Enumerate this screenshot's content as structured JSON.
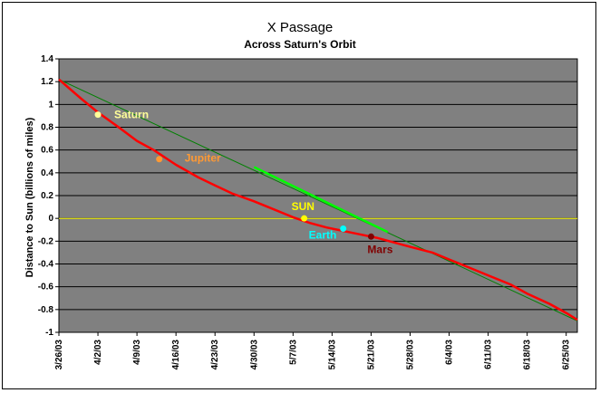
{
  "chart_data": {
    "type": "line",
    "title": "X Passage",
    "subtitle": "Across Saturn's Orbit",
    "ylabel": "Distance to Sun (billions of miles)",
    "ylim": [
      -1,
      1.4
    ],
    "yticks": [
      "1.4",
      "1.2",
      "1",
      "0.8",
      "0.6",
      "0.4",
      "0.2",
      "0",
      "-0.2",
      "-0.4",
      "-0.6",
      "-0.8",
      "-1"
    ],
    "xlim": [
      "3/26/03",
      "6/27/03"
    ],
    "xticks": [
      "3/26/03",
      "4/2/03",
      "4/9/03",
      "4/16/03",
      "4/23/03",
      "4/30/03",
      "5/7/03",
      "5/14/03",
      "5/21/03",
      "5/28/03",
      "6/4/03",
      "6/11/03",
      "6/18/03",
      "6/25/03"
    ],
    "grid": true,
    "plot_background": "#808080",
    "series": [
      {
        "color": "#ff0000",
        "points": [
          [
            "3/26/03",
            1.22
          ],
          [
            "3/30/03",
            1.05
          ],
          [
            "4/2/03",
            0.93
          ],
          [
            "4/6/03",
            0.79
          ],
          [
            "4/9/03",
            0.68
          ],
          [
            "4/12/03",
            0.6
          ],
          [
            "4/16/03",
            0.47
          ],
          [
            "4/20/03",
            0.36
          ],
          [
            "4/23/03",
            0.29
          ],
          [
            "4/26/03",
            0.22
          ],
          [
            "4/30/03",
            0.15
          ],
          [
            "5/3/03",
            0.09
          ],
          [
            "5/7/03",
            0.01
          ],
          [
            "5/10/03",
            -0.04
          ],
          [
            "5/13/03",
            -0.08
          ],
          [
            "5/16/03",
            -0.11
          ],
          [
            "5/19/03",
            -0.14
          ],
          [
            "5/22/03",
            -0.17
          ],
          [
            "5/25/03",
            -0.21
          ],
          [
            "5/28/03",
            -0.25
          ],
          [
            "6/1/03",
            -0.3
          ],
          [
            "6/4/03",
            -0.36
          ],
          [
            "6/8/03",
            -0.44
          ],
          [
            "6/11/03",
            -0.5
          ],
          [
            "6/15/03",
            -0.58
          ],
          [
            "6/18/03",
            -0.66
          ],
          [
            "6/22/03",
            -0.75
          ],
          [
            "6/25/03",
            -0.83
          ],
          [
            "6/27/03",
            -0.89
          ]
        ]
      },
      {
        "color": "#008000",
        "points": [
          [
            "3/26/03",
            1.22
          ],
          [
            "6/27/03",
            -0.9
          ]
        ]
      },
      {
        "color": "#00ff00",
        "points": [
          [
            "4/30/03",
            0.45
          ],
          [
            "5/24/03",
            -0.12
          ]
        ]
      },
      {
        "color": "#ffff00",
        "points": [
          [
            "3/26/03",
            0
          ],
          [
            "6/27/03",
            0
          ]
        ]
      }
    ],
    "annotations": [
      {
        "label": "Saturn",
        "date": "4/2/03",
        "y": 0.91,
        "marker_color": "#ffff99",
        "text_color": "#ffff99"
      },
      {
        "label": "Jupiter",
        "date": "4/13/03",
        "y": 0.52,
        "marker_color": "#ff9933",
        "text_color": "#ff9933"
      },
      {
        "label": "SUN",
        "date": "5/9/03",
        "y": 0.0,
        "marker_color": "#ffff00",
        "text_color": "#ffff00"
      },
      {
        "label": "Earth",
        "date": "5/16/03",
        "y": -0.09,
        "marker_color": "#00ffff",
        "text_color": "#00ffff"
      },
      {
        "label": "Mars",
        "date": "5/21/03",
        "y": -0.16,
        "marker_color": "#800000",
        "text_color": "#800000"
      }
    ]
  }
}
